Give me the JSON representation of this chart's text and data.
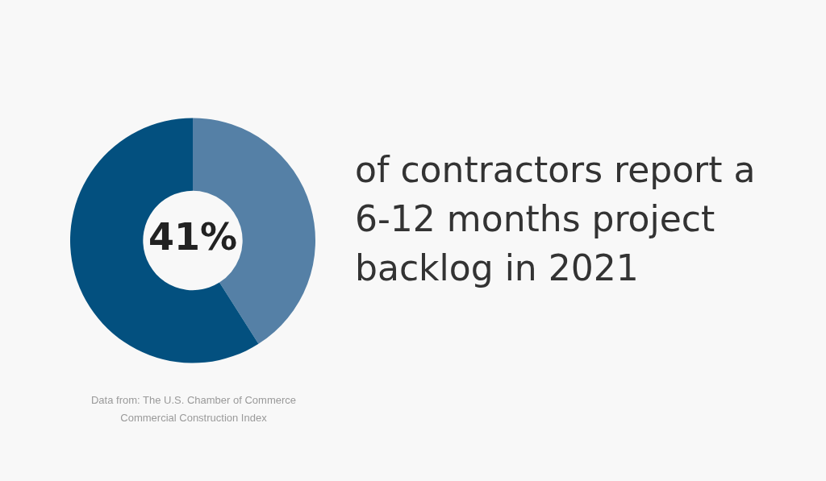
{
  "chart_data": {
    "type": "donut",
    "title": "of contractors report a 6-12 months project backlog in 2021",
    "categories": [
      null,
      null
    ],
    "values": [
      41,
      59
    ],
    "colors": [
      "#5580a6",
      "#03507f"
    ],
    "value_labels": [
      "41%",
      null
    ],
    "annotations": [
      "Data from: The U.S. Chamber of Commerce Commercial Construction Index"
    ],
    "legend": false
  }
}
